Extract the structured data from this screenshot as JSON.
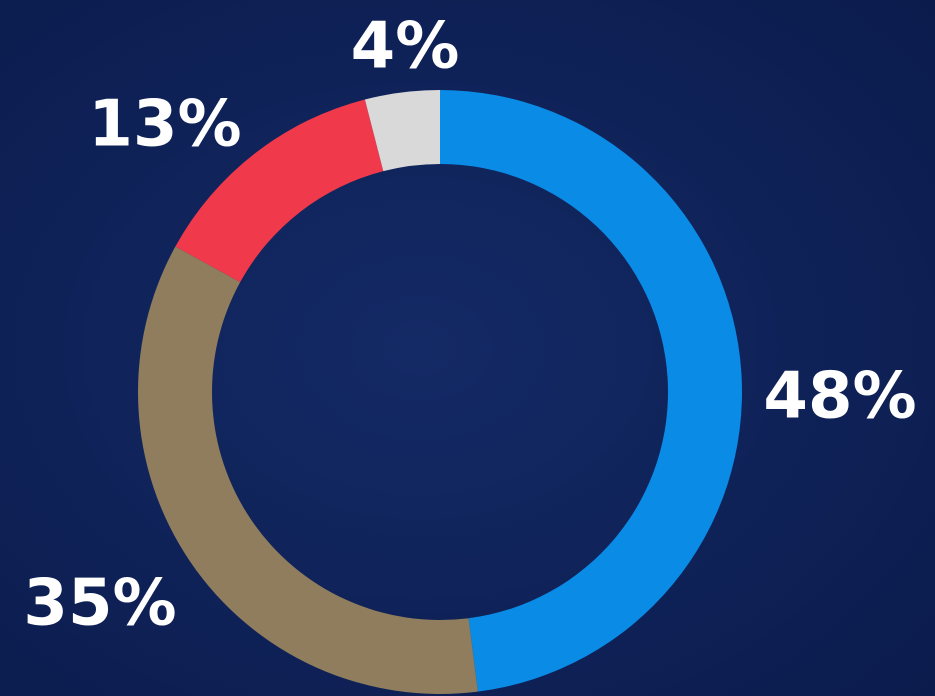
{
  "chart_data": {
    "type": "donut",
    "values": [
      48,
      35,
      13,
      4
    ],
    "value_labels": [
      "48%",
      "35%",
      "13%",
      "4%"
    ],
    "colors": [
      "#0a8be6",
      "#8f7d5d",
      "#f03a4b",
      "#d9d9d9"
    ]
  }
}
